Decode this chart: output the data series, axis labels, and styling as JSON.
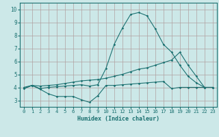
{
  "xlabel": "Humidex (Indice chaleur)",
  "xlim": [
    -0.5,
    23.5
  ],
  "ylim": [
    2.5,
    10.5
  ],
  "yticks": [
    3,
    4,
    5,
    6,
    7,
    8,
    9,
    10
  ],
  "xticks": [
    0,
    1,
    2,
    3,
    4,
    5,
    6,
    7,
    8,
    9,
    10,
    11,
    12,
    13,
    14,
    15,
    16,
    17,
    18,
    19,
    20,
    21,
    22,
    23
  ],
  "bg_color": "#cce8e8",
  "grid_color": "#b0a0a0",
  "line_color": "#1a7070",
  "series1_x": [
    0,
    1,
    2,
    3,
    4,
    5,
    6,
    7,
    8,
    9,
    10,
    11,
    12,
    13,
    14,
    15,
    16,
    17,
    18,
    19,
    20,
    21,
    22,
    23
  ],
  "series1_y": [
    3.9,
    4.15,
    3.85,
    3.5,
    3.3,
    3.3,
    3.3,
    3.05,
    2.85,
    3.35,
    4.15,
    4.15,
    4.2,
    4.25,
    4.3,
    4.35,
    4.4,
    4.45,
    3.9,
    4.0,
    4.0,
    4.0,
    4.0,
    4.0
  ],
  "series2_x": [
    0,
    1,
    2,
    3,
    4,
    5,
    6,
    7,
    8,
    9,
    10,
    11,
    12,
    13,
    14,
    15,
    16,
    17,
    18,
    19,
    20,
    21,
    22,
    23
  ],
  "series2_y": [
    4.0,
    4.15,
    4.1,
    4.15,
    4.2,
    4.3,
    4.4,
    4.5,
    4.55,
    4.6,
    4.7,
    4.85,
    5.0,
    5.2,
    5.4,
    5.5,
    5.7,
    5.9,
    6.1,
    6.7,
    5.7,
    4.85,
    4.0,
    4.0
  ],
  "series3_x": [
    0,
    1,
    2,
    3,
    4,
    5,
    6,
    7,
    8,
    9,
    10,
    11,
    12,
    13,
    14,
    15,
    16,
    17,
    18,
    19,
    20,
    21,
    22,
    23
  ],
  "series3_y": [
    3.9,
    4.15,
    3.9,
    4.0,
    4.05,
    4.1,
    4.15,
    4.2,
    4.1,
    4.2,
    5.45,
    7.3,
    8.55,
    9.6,
    9.75,
    9.5,
    8.5,
    7.3,
    6.7,
    5.7,
    4.85,
    4.35,
    4.0,
    4.0
  ]
}
